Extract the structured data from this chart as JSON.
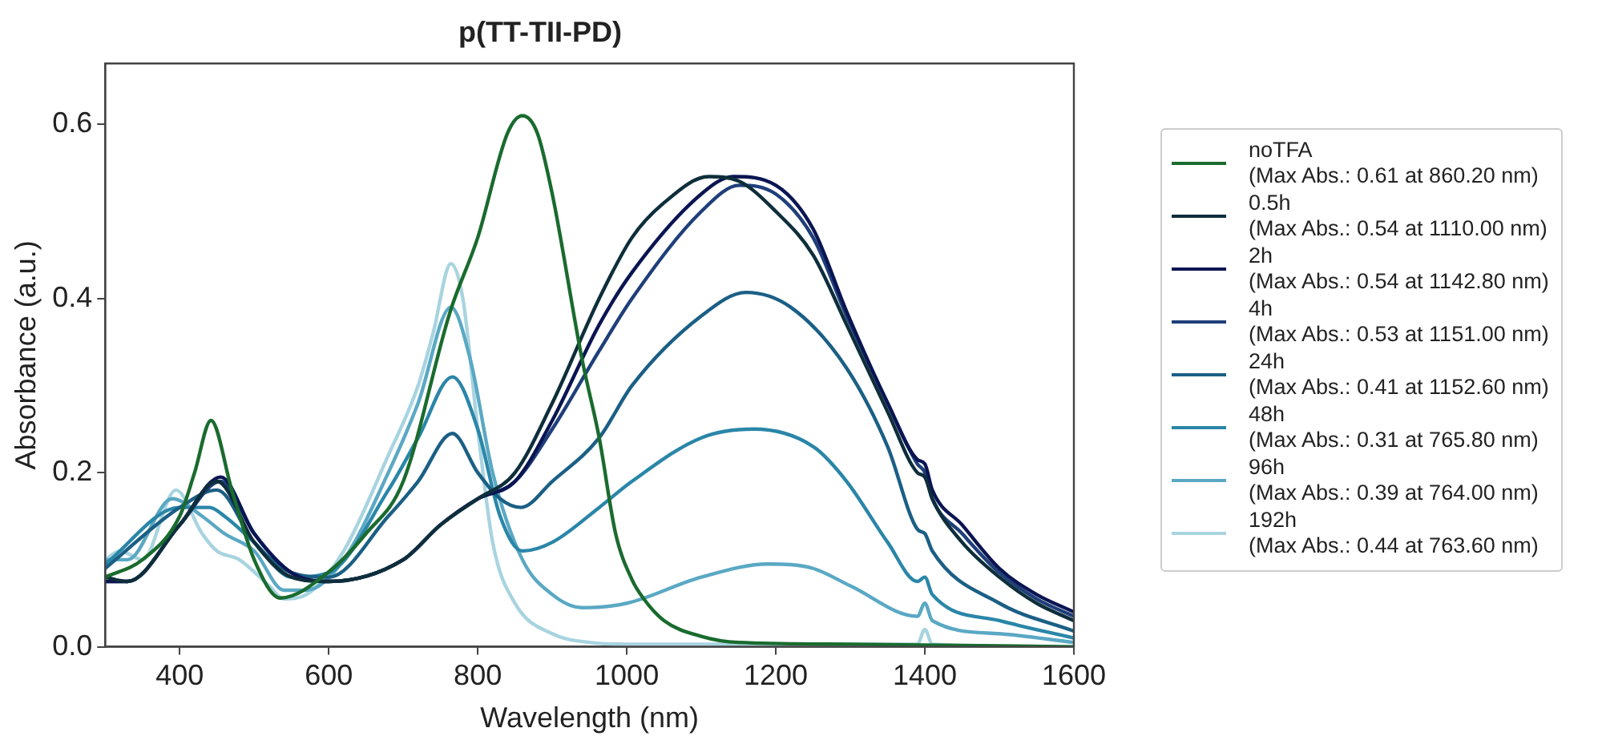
{
  "chart_data": {
    "type": "line",
    "title": "p(TT-TII-PD)",
    "xlabel": "Wavelength (nm)",
    "ylabel": "Absorbance (a.u.)",
    "xlim": [
      300,
      1600
    ],
    "ylim": [
      0,
      0.67
    ],
    "xticks": [
      400,
      600,
      800,
      1000,
      1200,
      1400,
      1600
    ],
    "yticks": [
      {
        "value": 0,
        "label": "0.0"
      },
      {
        "value": 0.2,
        "label": "0.2"
      },
      {
        "value": 0.4,
        "label": "0.4"
      },
      {
        "value": 0.6,
        "label": "0.6"
      }
    ],
    "grid": false,
    "legend": "right",
    "marker": "none",
    "line_style": "solid",
    "series": [
      {
        "name": "noTFA\n(Max Abs.: 0.61 at 860.20 nm)",
        "color": "#1a6b2e",
        "x": [
          300,
          350,
          400,
          420,
          442,
          470,
          500,
          535,
          600,
          650,
          700,
          763,
          800,
          840,
          860,
          880,
          900,
          940,
          963,
          985,
          1007,
          1022,
          1050,
          1100,
          1150,
          1300,
          1600
        ],
        "values": [
          0.08,
          0.1,
          0.15,
          0.2,
          0.26,
          0.18,
          0.1,
          0.056,
          0.086,
          0.13,
          0.19,
          0.385,
          0.47,
          0.59,
          0.61,
          0.59,
          0.52,
          0.33,
          0.24,
          0.13,
          0.077,
          0.056,
          0.03,
          0.012,
          0.005,
          0.003,
          0
        ]
      },
      {
        "name": "0.5h\n(Max Abs.: 0.54 at 1110.00 nm)",
        "color": "#0e2e3b",
        "x": [
          300,
          330,
          400,
          450,
          500,
          550,
          600,
          700,
          750,
          800,
          850,
          900,
          963,
          1007,
          1050,
          1110,
          1150,
          1200,
          1250,
          1295,
          1350,
          1390,
          1400,
          1410,
          1450,
          1500,
          1550,
          1600
        ],
        "values": [
          0.08,
          0.075,
          0.14,
          0.19,
          0.12,
          0.08,
          0.075,
          0.1,
          0.14,
          0.17,
          0.2,
          0.28,
          0.4,
          0.47,
          0.51,
          0.54,
          0.535,
          0.5,
          0.45,
          0.37,
          0.27,
          0.2,
          0.195,
          0.17,
          0.12,
          0.08,
          0.05,
          0.03
        ]
      },
      {
        "name": "2h\n(Max Abs.: 0.54 at 1142.80 nm)",
        "color": "#0a1552",
        "x": [
          300,
          330,
          400,
          455,
          500,
          550,
          600,
          700,
          750,
          800,
          850,
          900,
          963,
          1007,
          1100,
          1143,
          1200,
          1250,
          1295,
          1350,
          1390,
          1400,
          1410,
          1450,
          1500,
          1550,
          1600
        ],
        "values": [
          0.075,
          0.075,
          0.14,
          0.195,
          0.13,
          0.085,
          0.075,
          0.1,
          0.14,
          0.17,
          0.19,
          0.26,
          0.37,
          0.43,
          0.52,
          0.54,
          0.53,
          0.48,
          0.385,
          0.28,
          0.215,
          0.21,
          0.18,
          0.14,
          0.09,
          0.06,
          0.04
        ]
      },
      {
        "name": "4h\n(Max Abs.: 0.53 at 1151.00 nm)",
        "color": "#1f3f7a",
        "x": [
          300,
          330,
          400,
          455,
          500,
          550,
          600,
          700,
          750,
          800,
          850,
          900,
          963,
          1007,
          1100,
          1151,
          1200,
          1250,
          1295,
          1350,
          1390,
          1400,
          1410,
          1450,
          1500,
          1550,
          1600
        ],
        "values": [
          0.075,
          0.075,
          0.14,
          0.19,
          0.13,
          0.085,
          0.075,
          0.1,
          0.14,
          0.17,
          0.19,
          0.25,
          0.34,
          0.4,
          0.5,
          0.53,
          0.52,
          0.47,
          0.38,
          0.28,
          0.21,
          0.2,
          0.17,
          0.13,
          0.085,
          0.055,
          0.035
        ]
      },
      {
        "name": "24h\n(Max Abs.: 0.41 at 1152.60 nm)",
        "color": "#1b5f85",
        "x": [
          300,
          400,
          450,
          500,
          550,
          600,
          680,
          720,
          766,
          800,
          830,
          858,
          900,
          963,
          1007,
          1100,
          1160,
          1220,
          1295,
          1350,
          1390,
          1400,
          1410,
          1500,
          1600
        ],
        "values": [
          0.09,
          0.16,
          0.18,
          0.12,
          0.085,
          0.08,
          0.15,
          0.19,
          0.245,
          0.2,
          0.17,
          0.16,
          0.19,
          0.24,
          0.3,
          0.38,
          0.407,
          0.39,
          0.32,
          0.23,
          0.135,
          0.13,
          0.11,
          0.05,
          0.018
        ]
      },
      {
        "name": "48h\n(Max Abs.: 0.31 at 765.80 nm)",
        "color": "#2a86a8",
        "x": [
          300,
          400,
          440,
          460,
          500,
          550,
          600,
          680,
          720,
          766,
          800,
          830,
          860,
          900,
          963,
          1007,
          1100,
          1170,
          1250,
          1295,
          1350,
          1390,
          1400,
          1410,
          1500,
          1600
        ],
        "values": [
          0.095,
          0.16,
          0.16,
          0.15,
          0.12,
          0.08,
          0.085,
          0.18,
          0.24,
          0.31,
          0.25,
          0.15,
          0.11,
          0.12,
          0.16,
          0.19,
          0.24,
          0.25,
          0.23,
          0.19,
          0.12,
          0.075,
          0.08,
          0.06,
          0.03,
          0.01
        ]
      },
      {
        "name": "96h\n(Max Abs.: 0.39 at 764.00 nm)",
        "color": "#5aa8c4",
        "x": [
          300,
          330,
          390,
          430,
          460,
          500,
          540,
          570,
          620,
          680,
          720,
          764,
          790,
          820,
          860,
          900,
          940,
          1000,
          1100,
          1190,
          1250,
          1300,
          1390,
          1400,
          1410,
          1500,
          1600
        ],
        "values": [
          0.1,
          0.1,
          0.17,
          0.15,
          0.13,
          0.11,
          0.065,
          0.065,
          0.1,
          0.2,
          0.28,
          0.39,
          0.33,
          0.2,
          0.1,
          0.06,
          0.045,
          0.05,
          0.08,
          0.095,
          0.09,
          0.07,
          0.035,
          0.05,
          0.03,
          0.015,
          0.005
        ]
      },
      {
        "name": "192h\n(Max Abs.: 0.44 at 763.60 nm)",
        "color": "#a8d4e0",
        "x": [
          300,
          320,
          350,
          395,
          430,
          450,
          480,
          520,
          540,
          570,
          620,
          680,
          720,
          740,
          764,
          780,
          800,
          820,
          850,
          900,
          950,
          1000,
          1390,
          1400,
          1410,
          1600
        ],
        "values": [
          0.1,
          0.11,
          0.1,
          0.18,
          0.13,
          0.11,
          0.1,
          0.07,
          0.055,
          0.06,
          0.11,
          0.22,
          0.3,
          0.36,
          0.44,
          0.4,
          0.25,
          0.12,
          0.05,
          0.015,
          0.005,
          0.003,
          0.003,
          0.02,
          0.003,
          0
        ]
      }
    ]
  }
}
